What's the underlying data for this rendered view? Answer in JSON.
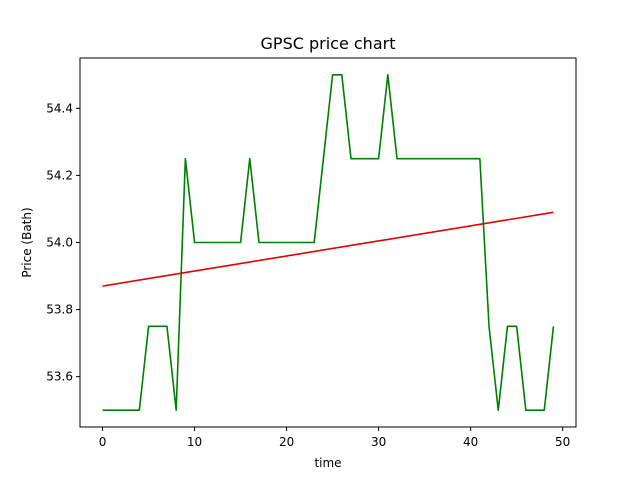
{
  "chart_data": {
    "type": "line",
    "title": "GPSC price chart",
    "xlabel": "time",
    "ylabel": "Price (Bath)",
    "xlim": [
      -2.45,
      51.45
    ],
    "ylim": [
      53.45,
      54.55
    ],
    "xticks": [
      0,
      10,
      20,
      30,
      40,
      50
    ],
    "yticks": [
      53.6,
      53.8,
      54.0,
      54.2,
      54.4
    ],
    "xtick_labels": [
      "0",
      "10",
      "20",
      "30",
      "40",
      "50"
    ],
    "ytick_labels": [
      "53.6",
      "53.8",
      "54.0",
      "54.2",
      "54.4"
    ],
    "grid": false,
    "series": [
      {
        "name": "price",
        "color": "#008000",
        "x": [
          0,
          1,
          2,
          3,
          4,
          5,
          6,
          7,
          8,
          9,
          10,
          11,
          12,
          13,
          14,
          15,
          16,
          17,
          18,
          19,
          20,
          21,
          22,
          23,
          24,
          25,
          26,
          27,
          28,
          29,
          30,
          31,
          32,
          33,
          34,
          35,
          36,
          37,
          38,
          39,
          40,
          41,
          42,
          43,
          44,
          45,
          46,
          47,
          48,
          49
        ],
        "values": [
          53.5,
          53.5,
          53.5,
          53.5,
          53.5,
          53.75,
          53.75,
          53.75,
          53.5,
          54.25,
          54.0,
          54.0,
          54.0,
          54.0,
          54.0,
          54.0,
          54.25,
          54.0,
          54.0,
          54.0,
          54.0,
          54.0,
          54.0,
          54.0,
          54.25,
          54.5,
          54.5,
          54.25,
          54.25,
          54.25,
          54.25,
          54.5,
          54.25,
          54.25,
          54.25,
          54.25,
          54.25,
          54.25,
          54.25,
          54.25,
          54.25,
          54.25,
          53.75,
          53.5,
          53.75,
          53.75,
          53.5,
          53.5,
          53.5,
          53.75
        ]
      },
      {
        "name": "trend",
        "color": "#e00000",
        "x": [
          0,
          49
        ],
        "values": [
          53.87,
          54.09
        ]
      }
    ]
  }
}
